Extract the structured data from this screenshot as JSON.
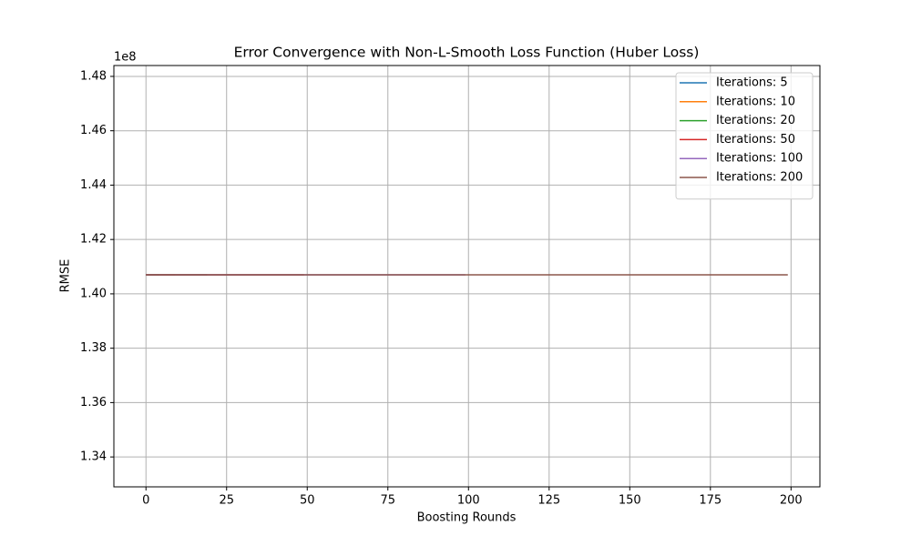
{
  "chart_data": {
    "type": "line",
    "title": "Error Convergence with Non-L-Smooth Loss Function (Huber Loss)",
    "xlabel": "Boosting Rounds",
    "ylabel": "RMSE",
    "y_offset_label": "1e8",
    "xlim": [
      -9.95,
      208.95
    ],
    "xticks": [
      0,
      25,
      50,
      75,
      100,
      125,
      150,
      175,
      200
    ],
    "ylim": [
      132900000.0,
      148400000.0
    ],
    "yticks": [
      {
        "value": 134000000.0,
        "label": "1.34"
      },
      {
        "value": 136000000.0,
        "label": "1.36"
      },
      {
        "value": 138000000.0,
        "label": "1.38"
      },
      {
        "value": 140000000.0,
        "label": "1.40"
      },
      {
        "value": 142000000.0,
        "label": "1.42"
      },
      {
        "value": 144000000.0,
        "label": "1.44"
      },
      {
        "value": 146000000.0,
        "label": "1.46"
      },
      {
        "value": 148000000.0,
        "label": "1.48"
      }
    ],
    "grid": true,
    "legend": "upper right",
    "series": [
      {
        "name": "Iterations: 5",
        "color": "#1f77b4",
        "values": [
          140700000.0,
          140700000.0,
          140700000.0,
          140700000.0,
          140700000.0
        ]
      },
      {
        "name": "Iterations: 10",
        "color": "#ff7f0e",
        "values": [
          140700000.0,
          140700000.0,
          140700000.0,
          140700000.0,
          140700000.0,
          140700000.0,
          140700000.0,
          140700000.0,
          140700000.0,
          140700000.0
        ]
      },
      {
        "name": "Iterations: 20",
        "color": "#2ca02c",
        "values": [
          140700000.0,
          140700000.0,
          140700000.0,
          140700000.0,
          140700000.0,
          140700000.0,
          140700000.0,
          140700000.0,
          140700000.0,
          140700000.0,
          140700000.0,
          140700000.0,
          140700000.0,
          140700000.0,
          140700000.0,
          140700000.0,
          140700000.0,
          140700000.0,
          140700000.0,
          140700000.0
        ]
      },
      {
        "name": "Iterations: 50",
        "color": "#d62728",
        "values": [
          140700000.0,
          140700000.0,
          140700000.0,
          140700000.0,
          140700000.0,
          140700000.0,
          140700000.0,
          140700000.0,
          140700000.0,
          140700000.0,
          140700000.0,
          140700000.0,
          140700000.0,
          140700000.0,
          140700000.0,
          140700000.0,
          140700000.0,
          140700000.0,
          140700000.0,
          140700000.0,
          140700000.0,
          140700000.0,
          140700000.0,
          140700000.0,
          140700000.0,
          140700000.0,
          140700000.0,
          140700000.0,
          140700000.0,
          140700000.0,
          140700000.0,
          140700000.0,
          140700000.0,
          140700000.0,
          140700000.0,
          140700000.0,
          140700000.0,
          140700000.0,
          140700000.0,
          140700000.0,
          140700000.0,
          140700000.0,
          140700000.0,
          140700000.0,
          140700000.0,
          140700000.0,
          140700000.0,
          140700000.0,
          140700000.0,
          140700000.0
        ]
      },
      {
        "name": "Iterations: 100",
        "color": "#9467bd",
        "values": [
          140700000.0,
          140700000.0,
          140700000.0,
          140700000.0,
          140700000.0,
          140700000.0,
          140700000.0,
          140700000.0,
          140700000.0,
          140700000.0,
          140700000.0,
          140700000.0,
          140700000.0,
          140700000.0,
          140700000.0,
          140700000.0,
          140700000.0,
          140700000.0,
          140700000.0,
          140700000.0,
          140700000.0,
          140700000.0,
          140700000.0,
          140700000.0,
          140700000.0,
          140700000.0,
          140700000.0,
          140700000.0,
          140700000.0,
          140700000.0,
          140700000.0,
          140700000.0,
          140700000.0,
          140700000.0,
          140700000.0,
          140700000.0,
          140700000.0,
          140700000.0,
          140700000.0,
          140700000.0,
          140700000.0,
          140700000.0,
          140700000.0,
          140700000.0,
          140700000.0,
          140700000.0,
          140700000.0,
          140700000.0,
          140700000.0,
          140700000.0,
          140700000.0,
          140700000.0,
          140700000.0,
          140700000.0,
          140700000.0,
          140700000.0,
          140700000.0,
          140700000.0,
          140700000.0,
          140700000.0,
          140700000.0,
          140700000.0,
          140700000.0,
          140700000.0,
          140700000.0,
          140700000.0,
          140700000.0,
          140700000.0,
          140700000.0,
          140700000.0,
          140700000.0,
          140700000.0,
          140700000.0,
          140700000.0,
          140700000.0,
          140700000.0,
          140700000.0,
          140700000.0,
          140700000.0,
          140700000.0,
          140700000.0,
          140700000.0,
          140700000.0,
          140700000.0,
          140700000.0,
          140700000.0,
          140700000.0,
          140700000.0,
          140700000.0,
          140700000.0,
          140700000.0,
          140700000.0,
          140700000.0,
          140700000.0,
          140700000.0,
          140700000.0,
          140700000.0,
          140700000.0,
          140700000.0,
          140700000.0
        ]
      },
      {
        "name": "Iterations: 200",
        "color": "#8c564b",
        "values": [
          140700000.0,
          140700000.0,
          140700000.0,
          140700000.0,
          140700000.0,
          140700000.0,
          140700000.0,
          140700000.0,
          140700000.0,
          140700000.0,
          140700000.0,
          140700000.0,
          140700000.0,
          140700000.0,
          140700000.0,
          140700000.0,
          140700000.0,
          140700000.0,
          140700000.0,
          140700000.0,
          140700000.0,
          140700000.0,
          140700000.0,
          140700000.0,
          140700000.0,
          140700000.0,
          140700000.0,
          140700000.0,
          140700000.0,
          140700000.0,
          140700000.0,
          140700000.0,
          140700000.0,
          140700000.0,
          140700000.0,
          140700000.0,
          140700000.0,
          140700000.0,
          140700000.0,
          140700000.0,
          140700000.0,
          140700000.0,
          140700000.0,
          140700000.0,
          140700000.0,
          140700000.0,
          140700000.0,
          140700000.0,
          140700000.0,
          140700000.0,
          140700000.0,
          140700000.0,
          140700000.0,
          140700000.0,
          140700000.0,
          140700000.0,
          140700000.0,
          140700000.0,
          140700000.0,
          140700000.0,
          140700000.0,
          140700000.0,
          140700000.0,
          140700000.0,
          140700000.0,
          140700000.0,
          140700000.0,
          140700000.0,
          140700000.0,
          140700000.0,
          140700000.0,
          140700000.0,
          140700000.0,
          140700000.0,
          140700000.0,
          140700000.0,
          140700000.0,
          140700000.0,
          140700000.0,
          140700000.0,
          140700000.0,
          140700000.0,
          140700000.0,
          140700000.0,
          140700000.0,
          140700000.0,
          140700000.0,
          140700000.0,
          140700000.0,
          140700000.0,
          140700000.0,
          140700000.0,
          140700000.0,
          140700000.0,
          140700000.0,
          140700000.0,
          140700000.0,
          140700000.0,
          140700000.0,
          140700000.0,
          140700000.0,
          140700000.0,
          140700000.0,
          140700000.0,
          140700000.0,
          140700000.0,
          140700000.0,
          140700000.0,
          140700000.0,
          140700000.0,
          140700000.0,
          140700000.0,
          140700000.0,
          140700000.0,
          140700000.0,
          140700000.0,
          140700000.0,
          140700000.0,
          140700000.0,
          140700000.0,
          140700000.0,
          140700000.0,
          140700000.0,
          140700000.0,
          140700000.0,
          140700000.0,
          140700000.0,
          140700000.0,
          140700000.0,
          140700000.0,
          140700000.0,
          140700000.0,
          140700000.0,
          140700000.0,
          140700000.0,
          140700000.0,
          140700000.0,
          140700000.0,
          140700000.0,
          140700000.0,
          140700000.0,
          140700000.0,
          140700000.0,
          140700000.0,
          140700000.0,
          140700000.0,
          140700000.0,
          140700000.0,
          140700000.0,
          140700000.0,
          140700000.0,
          140700000.0,
          140700000.0,
          140700000.0,
          140700000.0,
          140700000.0,
          140700000.0,
          140700000.0,
          140700000.0,
          140700000.0,
          140700000.0,
          140700000.0,
          140700000.0,
          140700000.0,
          140700000.0,
          140700000.0,
          140700000.0,
          140700000.0,
          140700000.0,
          140700000.0,
          140700000.0,
          140700000.0,
          140700000.0,
          140700000.0,
          140700000.0,
          140700000.0,
          140700000.0,
          140700000.0,
          140700000.0,
          140700000.0,
          140700000.0,
          140700000.0,
          140700000.0,
          140700000.0,
          140700000.0,
          140700000.0,
          140700000.0,
          140700000.0,
          140700000.0,
          140700000.0,
          140700000.0,
          140700000.0,
          140700000.0,
          140700000.0,
          140700000.0,
          140700000.0,
          140700000.0,
          140700000.0,
          140700000.0,
          140700000.0
        ]
      }
    ]
  }
}
